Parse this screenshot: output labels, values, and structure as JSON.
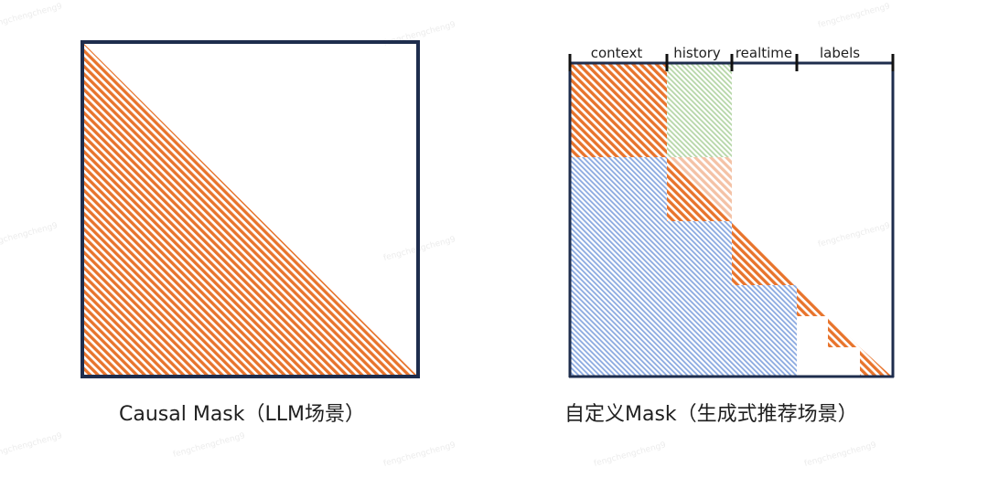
{
  "watermark": "fengchengcheng9",
  "left_panel": {
    "caption": "Causal Mask（LLM场景）"
  },
  "right_panel": {
    "caption": "自定义Mask（生成式推荐场景）",
    "segments": [
      {
        "label": "context"
      },
      {
        "label": "history"
      },
      {
        "label": "realtime"
      },
      {
        "label": "labels"
      }
    ]
  },
  "colors": {
    "frame": "#1e2d4d",
    "orange": "#e8742c",
    "green": "#b5d6a7",
    "blue": "#7d9fdc",
    "light_orange": "#f3b99a",
    "watermark": "#eeeeee"
  }
}
